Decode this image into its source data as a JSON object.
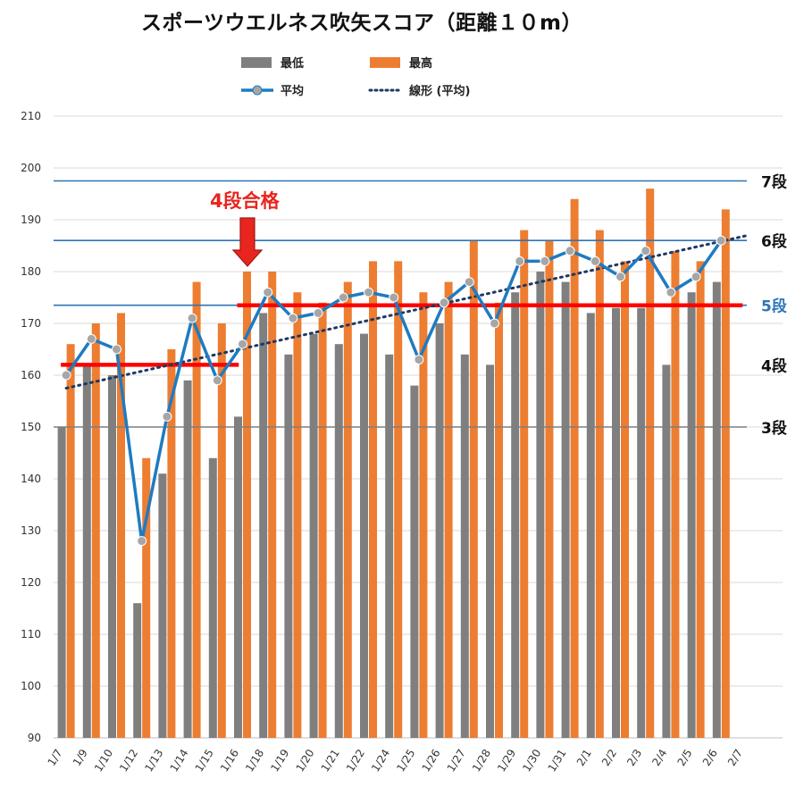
{
  "title": "スポーツウエルネス吹矢スコア（距離１０m）",
  "legend": {
    "min": "最低",
    "max": "最高",
    "avg": "平均",
    "trend": "線形 (平均)"
  },
  "colors": {
    "min": "#7f7f7f",
    "max": "#ed7d31",
    "avg": "#1f7bc0",
    "trend": "#1f3864",
    "rank_line": "#2e75b6",
    "pass_line": "#ff0000",
    "grid": "#d9d9d9",
    "highlight": "#2e75b6"
  },
  "annotation": {
    "label": "4段合格"
  },
  "rank_lines": [
    {
      "label": "7段",
      "value": 197.5,
      "line_color": "#2e75b6",
      "label_color": "#111111"
    },
    {
      "label": "6段",
      "value": 186,
      "line_color": "#2e75b6",
      "label_color": "#111111"
    },
    {
      "label": "5段",
      "value": 173.5,
      "line_color": "#2e75b6",
      "label_color": "#2e75b6"
    },
    {
      "label": "4段",
      "value": 162,
      "line_color": null,
      "label_color": "#111111"
    },
    {
      "label": "3段",
      "value": 150,
      "line_color": "#7f7f7f",
      "label_color": "#111111"
    }
  ],
  "pass_segments": [
    {
      "from": "1/7",
      "to": "1/15",
      "value": 162
    },
    {
      "from": "1/16",
      "to": "2/6",
      "value": 173.5
    }
  ],
  "chart_data": {
    "type": "bar",
    "categories": [
      "1/7",
      "1/9",
      "1/10",
      "1/12",
      "1/13",
      "1/14",
      "1/15",
      "1/16",
      "1/18",
      "1/19",
      "1/20",
      "1/21",
      "1/22",
      "1/24",
      "1/25",
      "1/26",
      "1/27",
      "1/28",
      "1/29",
      "1/30",
      "1/31",
      "2/1",
      "2/2",
      "2/3",
      "2/4",
      "2/5",
      "2/6",
      "2/7"
    ],
    "series": [
      {
        "name": "最低",
        "kind": "bar",
        "values": [
          150,
          162,
          160,
          116,
          141,
          159,
          144,
          152,
          172,
          164,
          168,
          166,
          168,
          164,
          158,
          170,
          164,
          162,
          176,
          180,
          178,
          172,
          173,
          173,
          162,
          176,
          178,
          null
        ]
      },
      {
        "name": "最高",
        "kind": "bar",
        "values": [
          166,
          170,
          172,
          144,
          165,
          178,
          170,
          180,
          180,
          176,
          174,
          178,
          182,
          182,
          176,
          178,
          186,
          174,
          188,
          186,
          194,
          188,
          182,
          196,
          184,
          182,
          192,
          null
        ]
      },
      {
        "name": "平均",
        "kind": "line",
        "values": [
          160,
          167,
          165,
          128,
          152,
          171,
          159,
          166,
          176,
          171,
          172,
          175,
          176,
          175,
          163,
          174,
          178,
          170,
          182,
          182,
          184,
          182,
          179,
          184,
          176,
          179,
          186,
          null
        ]
      },
      {
        "name": "線形 (平均)",
        "kind": "trendline",
        "from": 157.5,
        "to": 187
      }
    ],
    "ylim": [
      90,
      210
    ],
    "yticks": [
      90,
      100,
      110,
      120,
      130,
      140,
      150,
      160,
      170,
      180,
      190,
      200,
      210
    ],
    "grid": true,
    "legend_position": "top"
  }
}
